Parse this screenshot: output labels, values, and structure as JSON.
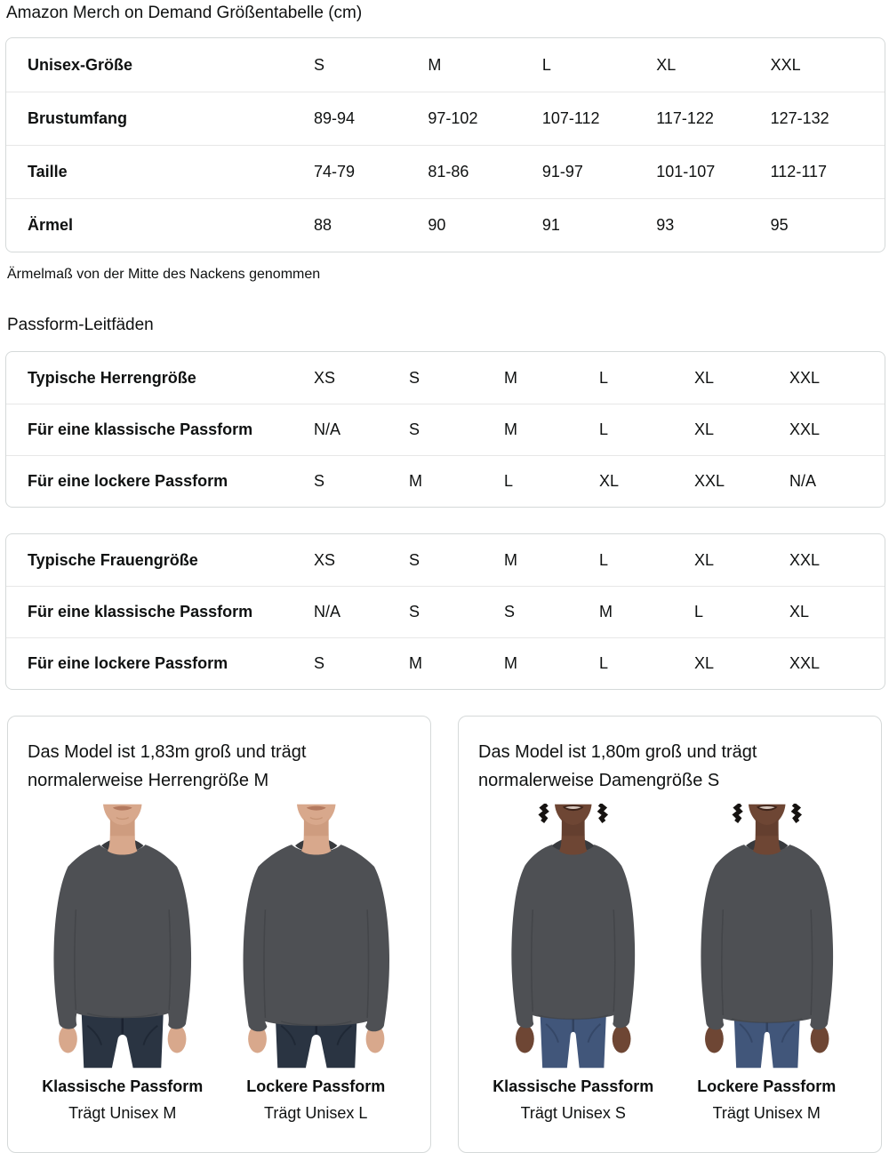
{
  "page": {
    "title": "Amazon Merch on Demand Größentabelle (cm)",
    "footnote": "Ärmelmaß von der Mitte des Nackens genommen",
    "fit_heading": "Passform-Leitfäden"
  },
  "size_table": {
    "header": {
      "label": "Unisex-Größe",
      "cols": [
        "S",
        "M",
        "L",
        "XL",
        "XXL"
      ]
    },
    "rows": [
      {
        "label": "Brustumfang",
        "values": [
          "89-94",
          "97-102",
          "107-112",
          "117-122",
          "127-132"
        ]
      },
      {
        "label": "Taille",
        "values": [
          "74-79",
          "81-86",
          "91-97",
          "101-107",
          "112-117"
        ]
      },
      {
        "label": "Ärmel",
        "values": [
          "88",
          "90",
          "91",
          "93",
          "95"
        ]
      }
    ]
  },
  "men_fit_table": {
    "rows": [
      {
        "label": "Typische Herrengröße",
        "values": [
          "XS",
          "S",
          "M",
          "L",
          "XL",
          "XXL"
        ]
      },
      {
        "label": "Für eine klassische Passform",
        "values": [
          "N/A",
          "S",
          "M",
          "L",
          "XL",
          "XXL"
        ]
      },
      {
        "label": "Für eine lockere Passform",
        "values": [
          "S",
          "M",
          "L",
          "XL",
          "XXL",
          "N/A"
        ]
      }
    ]
  },
  "women_fit_table": {
    "rows": [
      {
        "label": "Typische Frauengröße",
        "values": [
          "XS",
          "S",
          "M",
          "L",
          "XL",
          "XXL"
        ]
      },
      {
        "label": "Für eine klassische Passform",
        "values": [
          "N/A",
          "S",
          "S",
          "M",
          "L",
          "XL"
        ]
      },
      {
        "label": "Für eine lockere Passform",
        "values": [
          "S",
          "M",
          "M",
          "L",
          "XL",
          "XXL"
        ]
      }
    ]
  },
  "model_cards": [
    {
      "description": "Das Model ist 1,83m groß und trägt normalerweise Herrengröße M",
      "models": [
        {
          "fit": "Klassische Passform",
          "wears": "Trägt Unisex M"
        },
        {
          "fit": "Lockere Passform",
          "wears": "Trägt Unisex L"
        }
      ]
    },
    {
      "description": "Das Model ist 1,80m groß und trägt normalerweise Damengröße S",
      "models": [
        {
          "fit": "Klassische Passform",
          "wears": "Trägt Unisex S"
        },
        {
          "fit": "Lockere Passform",
          "wears": "Trägt Unisex M"
        }
      ]
    }
  ],
  "figure_colors": {
    "shirt": "#4E5054",
    "shirt_dark": "#383A3E",
    "jeans_men": "#2A3442",
    "jeans_men_dark": "#1B2330",
    "jeans_women": "#41567A",
    "jeans_women_dark": "#31425F",
    "skin_men": "#D8A88C",
    "skin_men_shadow": "#BC8868",
    "lip_men": "#B3795F",
    "skin_women": "#6E4634",
    "skin_women_shadow": "#543527",
    "lip_women": "#3E241A",
    "hair_women": "#161311"
  },
  "ui_colors": {
    "text": "#0F1111",
    "card_border": "#D5D9D9",
    "row_divider": "#E7E7E7",
    "background": "#FFFFFF"
  }
}
